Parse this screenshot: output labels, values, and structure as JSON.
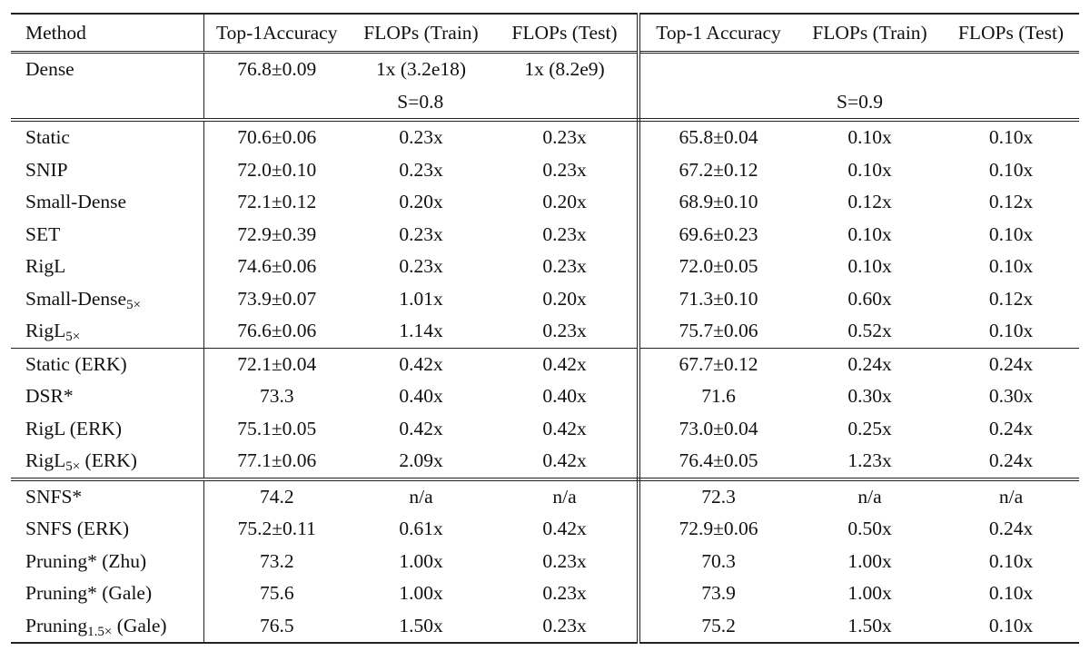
{
  "table": {
    "headers": [
      "Method",
      "Top-1Accuracy",
      "FLOPs (Train)",
      "FLOPs (Test)",
      "Top-1 Accuracy",
      "FLOPs (Train)",
      "FLOPs (Test)"
    ],
    "dense": {
      "method": "Dense",
      "acc": "76.8±0.09",
      "train": "1x (3.2e18)",
      "test": "1x (8.2e9)"
    },
    "sparsity": {
      "s1": "S=0.8",
      "s2": "S=0.9"
    },
    "groups": [
      {
        "rows": [
          {
            "method": "Static",
            "sub": "",
            "suffix": "",
            "a1": "70.6±0.06",
            "t1": "0.23x",
            "e1": "0.23x",
            "a2": "65.8±0.04",
            "t2": "0.10x",
            "e2": "0.10x",
            "bold1": false,
            "bold2": false
          },
          {
            "method": "SNIP",
            "sub": "",
            "suffix": "",
            "a1": "72.0±0.10",
            "t1": "0.23x",
            "e1": "0.23x",
            "a2": "67.2±0.12",
            "t2": "0.10x",
            "e2": "0.10x",
            "bold1": false,
            "bold2": false
          },
          {
            "method": "Small-Dense",
            "sub": "",
            "suffix": "",
            "a1": "72.1±0.12",
            "t1": "0.20x",
            "e1": "0.20x",
            "a2": "68.9±0.10",
            "t2": "0.12x",
            "e2": "0.12x",
            "bold1": false,
            "bold2": false
          },
          {
            "method": "SET",
            "sub": "",
            "suffix": "",
            "a1": "72.9±0.39",
            "t1": "0.23x",
            "e1": "0.23x",
            "a2": "69.6±0.23",
            "t2": "0.10x",
            "e2": "0.10x",
            "bold1": false,
            "bold2": false
          },
          {
            "method": "RigL",
            "sub": "",
            "suffix": "",
            "a1": "74.6±0.06",
            "t1": "0.23x",
            "e1": "0.23x",
            "a2": "72.0±0.05",
            "t2": "0.10x",
            "e2": "0.10x",
            "bold1": false,
            "bold2": false
          },
          {
            "method": "Small-Dense",
            "sub": "5×",
            "suffix": "",
            "a1": "73.9±0.07",
            "t1": "1.01x",
            "e1": "0.20x",
            "a2": "71.3±0.10",
            "t2": "0.60x",
            "e2": "0.12x",
            "bold1": false,
            "bold2": false
          },
          {
            "method": "RigL",
            "sub": "5×",
            "suffix": "",
            "a1": "76.6±0.06",
            "t1": "1.14x",
            "e1": "0.23x",
            "a2": "75.7±0.06",
            "t2": "0.52x",
            "e2": "0.10x",
            "bold1": true,
            "bold2": true
          }
        ]
      },
      {
        "rows": [
          {
            "method": "Static (ERK)",
            "sub": "",
            "suffix": "",
            "a1": "72.1±0.04",
            "t1": "0.42x",
            "e1": "0.42x",
            "a2": "67.7±0.12",
            "t2": "0.24x",
            "e2": "0.24x",
            "bold1": false,
            "bold2": false
          },
          {
            "method": "DSR*",
            "sub": "",
            "suffix": "",
            "a1": "73.3",
            "t1": "0.40x",
            "e1": "0.40x",
            "a2": "71.6",
            "t2": "0.30x",
            "e2": "0.30x",
            "bold1": false,
            "bold2": false
          },
          {
            "method": "RigL (ERK)",
            "sub": "",
            "suffix": "",
            "a1": "75.1±0.05",
            "t1": "0.42x",
            "e1": "0.42x",
            "a2": "73.0±0.04",
            "t2": "0.25x",
            "e2": "0.24x",
            "bold1": false,
            "bold2": false
          },
          {
            "method": "RigL",
            "sub": "5×",
            "suffix": " (ERK)",
            "a1": "77.1±0.06",
            "t1": "2.09x",
            "e1": "0.42x",
            "a2": "76.4±0.05",
            "t2": "1.23x",
            "e2": "0.24x",
            "bold1": true,
            "bold2": true
          }
        ]
      },
      {
        "rows": [
          {
            "method": "SNFS*",
            "sub": "",
            "suffix": "",
            "a1": "74.2",
            "t1": "n/a",
            "e1": "n/a",
            "a2": "72.3",
            "t2": "n/a",
            "e2": "n/a",
            "bold1": false,
            "bold2": false
          },
          {
            "method": "SNFS (ERK)",
            "sub": "",
            "suffix": "",
            "a1": "75.2±0.11",
            "t1": "0.61x",
            "e1": "0.42x",
            "a2": "72.9±0.06",
            "t2": "0.50x",
            "e2": "0.24x",
            "bold1": false,
            "bold2": false
          },
          {
            "method": "Pruning* (Zhu)",
            "sub": "",
            "suffix": "",
            "a1": "73.2",
            "t1": "1.00x",
            "e1": "0.23x",
            "a2": "70.3",
            "t2": "1.00x",
            "e2": "0.10x",
            "bold1": false,
            "bold2": false
          },
          {
            "method": "Pruning* (Gale)",
            "sub": "",
            "suffix": "",
            "a1": "75.6",
            "t1": "1.00x",
            "e1": "0.23x",
            "a2": "73.9",
            "t2": "1.00x",
            "e2": "0.10x",
            "bold1": false,
            "bold2": false
          },
          {
            "method": "Pruning",
            "sub": "1.5×",
            "suffix": " (Gale)",
            "a1": "76.5",
            "t1": "1.50x",
            "e1": "0.23x",
            "a2": "75.2",
            "t2": "1.50x",
            "e2": "0.10x",
            "bold1": true,
            "bold2": true
          }
        ]
      }
    ]
  }
}
